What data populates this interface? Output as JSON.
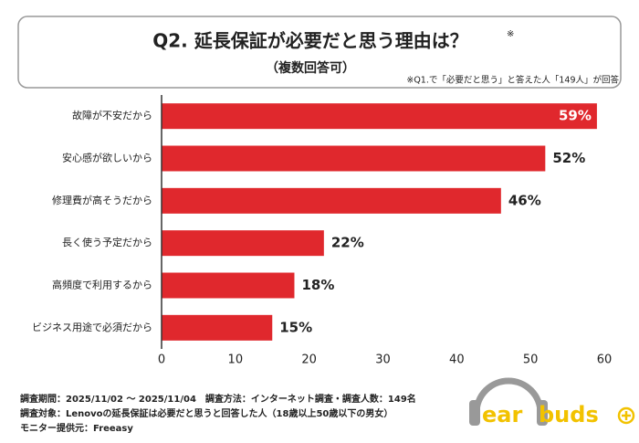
{
  "chart_data": {
    "type": "bar",
    "orientation": "horizontal",
    "title": "Q2. 延長保証が必要だと思う理由は？",
    "title_mark": "※",
    "subtitle": "（複数回答可）",
    "note": "※Q1.で「必要だと思う」と答えた人「149人」が回答",
    "categories": [
      "故障が不安だから",
      "安心感が欲しいから",
      "修理費が高そうだから",
      "長く使う予定だから",
      "高頻度で利用するから",
      "ビジネス用途で必須だから"
    ],
    "values": [
      59,
      52,
      46,
      22,
      18,
      15
    ],
    "value_labels": [
      "59%",
      "52%",
      "46%",
      "22%",
      "18%",
      "15%"
    ],
    "color": "#e0282d",
    "xlim": [
      0,
      60
    ],
    "xticks": [
      0,
      10,
      20,
      30,
      40,
      50,
      60
    ],
    "grid": false,
    "footer": [
      "調査期間：2025/11/02 〜 2025/11/04　調査方法：インターネット調査・調査人数：149名",
      "調査対象：Lenovoの延長保証は必要だと思うと回答した人（18歳以上50歳以下の男女）",
      "モニター提供元：Freeasy"
    ],
    "logo": [
      "ear",
      "buds"
    ]
  }
}
